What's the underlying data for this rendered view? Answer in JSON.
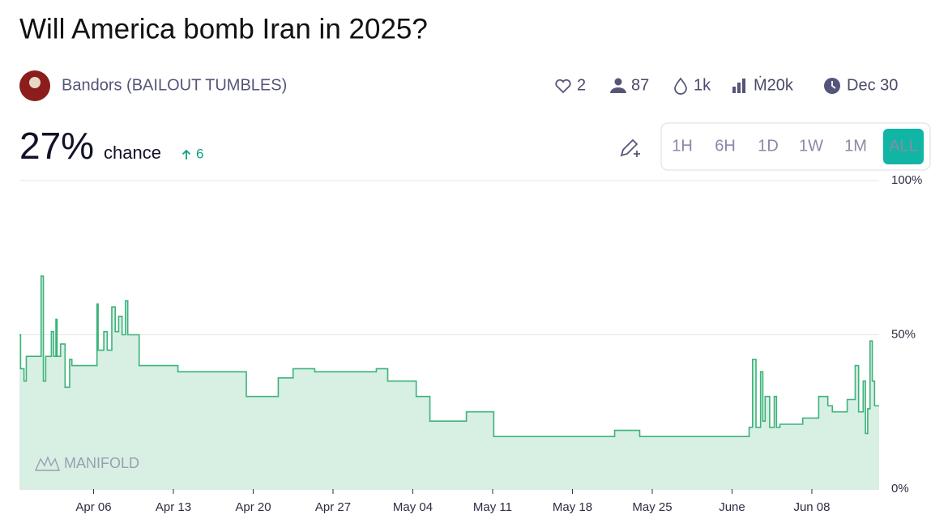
{
  "header": {
    "title": "Will America bomb Iran in 2025?"
  },
  "author": {
    "name": "Bandors (BAILOUT TUMBLES)"
  },
  "stats": {
    "likes": "2",
    "traders": "87",
    "liquidity": "1k",
    "volume": "Ṁ20k",
    "close": "Dec 30"
  },
  "probability": {
    "value": "27%",
    "label": "chance",
    "change": "6"
  },
  "time_buttons": {
    "labels": [
      "1H",
      "6H",
      "1D",
      "1W",
      "1M",
      "ALL"
    ],
    "selected": 5
  },
  "chart_data": {
    "type": "line",
    "step": true,
    "grid": true,
    "watermark": "MANIFOLD",
    "x": [
      89.5,
      89.6,
      89.9,
      90.1,
      90.9,
      91.4,
      91.6,
      91.8,
      92.3,
      92.5,
      92.7,
      92.8,
      93.1,
      93.5,
      93.9,
      94.1,
      94.9,
      96.3,
      96.4,
      96.9,
      97.2,
      97.6,
      97.9,
      98.2,
      98.5,
      98.8,
      99.0,
      100.0,
      103.4,
      109.4,
      112.2,
      113.5,
      115.4,
      120.8,
      121.8,
      124.3,
      125.5,
      128.7,
      131.1,
      141.7,
      143.9,
      153.5,
      153.8,
      154.1,
      154.5,
      154.7,
      154.9,
      155.3,
      155.7,
      155.9,
      156.2,
      158.2,
      159.6,
      160.4,
      160.8,
      162.1,
      162.8,
      163.1,
      163.5,
      163.7,
      163.9,
      164.1,
      164.3,
      164.5,
      164.9
    ],
    "series": [
      {
        "color": "#3cb37a",
        "fill": "#d8efe3",
        "values": [
          50,
          39,
          35,
          43,
          43,
          69,
          35,
          43,
          51,
          43,
          55,
          43,
          47,
          33,
          42,
          40,
          40,
          60,
          45,
          51,
          45,
          59,
          51,
          56,
          50,
          61,
          50,
          40,
          38,
          30,
          36,
          39,
          38,
          39,
          35,
          30,
          22,
          25,
          17,
          19,
          17,
          20,
          42,
          20,
          38,
          22,
          30,
          20,
          30,
          20,
          21,
          23,
          30,
          27,
          25,
          29,
          40,
          25,
          35,
          18,
          26,
          48,
          35,
          27,
          27
        ]
      }
    ],
    "xlim": [
      89.5,
      164.9
    ],
    "xticks": [
      {
        "value": 96,
        "label": "Apr 06"
      },
      {
        "value": 103,
        "label": "Apr 13"
      },
      {
        "value": 110,
        "label": "Apr 20"
      },
      {
        "value": 117,
        "label": "Apr 27"
      },
      {
        "value": 124,
        "label": "May 04"
      },
      {
        "value": 131,
        "label": "May 11"
      },
      {
        "value": 138,
        "label": "May 18"
      },
      {
        "value": 145,
        "label": "May 25"
      },
      {
        "value": 152,
        "label": "June"
      },
      {
        "value": 159,
        "label": "Jun 08"
      }
    ],
    "ylim": [
      0,
      100
    ],
    "yticks": [
      {
        "value": 0,
        "label": "0%"
      },
      {
        "value": 50,
        "label": "50%"
      },
      {
        "value": 100,
        "label": "100%"
      }
    ]
  }
}
